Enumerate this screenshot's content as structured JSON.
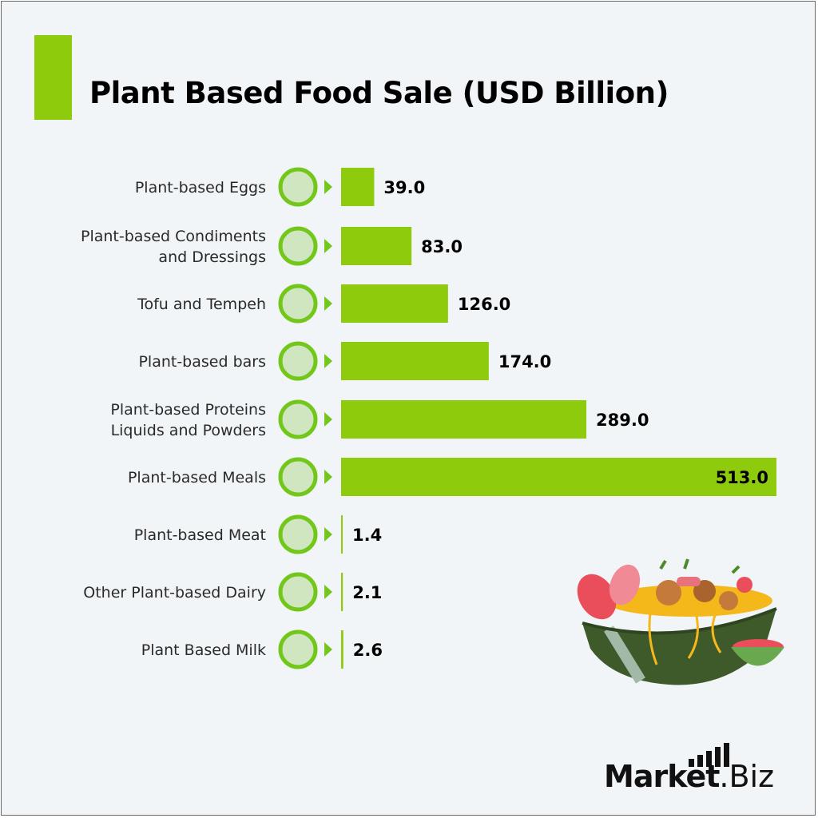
{
  "title": "Plant Based Food Sale (USD Billion)",
  "brand": {
    "bold": "Market",
    "light": ".Biz"
  },
  "colors": {
    "bar": "#8fcb0d",
    "marker_ring": "#72c71a",
    "marker_fill": "#cfe6c0",
    "background": "#f1f5f7"
  },
  "chart_data": {
    "type": "bar",
    "orientation": "horizontal",
    "categories": [
      [
        "Plant-based Eggs"
      ],
      [
        "Plant-based Condiments",
        "and Dressings"
      ],
      [
        "Tofu and Tempeh"
      ],
      [
        "Plant-based bars"
      ],
      [
        "Plant-based Proteins ",
        "Liquids and Powders"
      ],
      [
        "Plant-based Meals"
      ],
      [
        "Plant-based Meat"
      ],
      [
        "Other Plant-based Dairy"
      ],
      [
        "Plant Based Milk"
      ]
    ],
    "values": [
      39.0,
      83.0,
      126.0,
      174.0,
      289.0,
      513.0,
      1.4,
      2.1,
      2.6
    ],
    "value_labels": [
      "39.0",
      "83.0",
      "126.0",
      "174.0",
      "289.0",
      "513.0",
      "1.4",
      "2.1",
      "2.6"
    ],
    "xlim": [
      0,
      513.0
    ],
    "grid": false,
    "legend": "none"
  }
}
